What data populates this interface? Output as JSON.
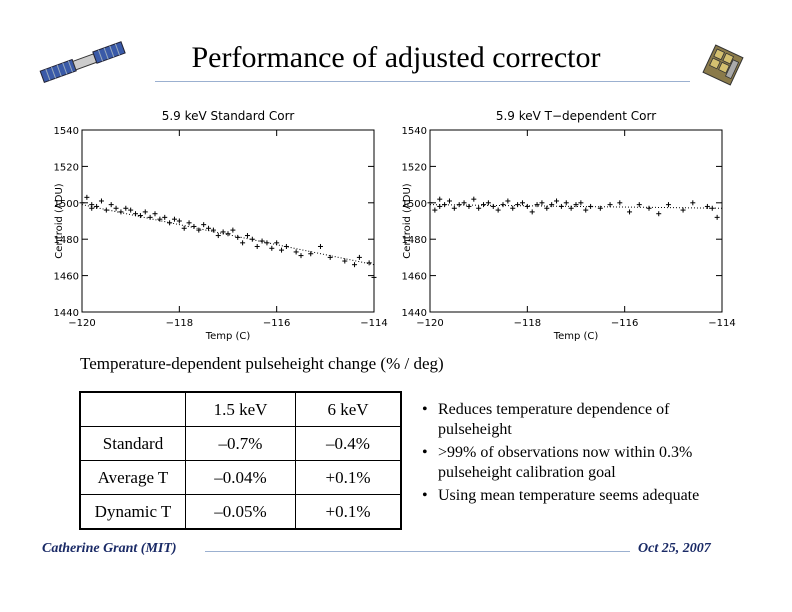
{
  "title": "Performance of adjusted corrector",
  "caption": "Temperature-dependent pulseheight change (% / deg)",
  "table": {
    "header": [
      "",
      "1.5 keV",
      "6 keV"
    ],
    "rows": [
      [
        "Standard",
        "–0.7%",
        "–0.4%"
      ],
      [
        "Average T",
        "–0.04%",
        "+0.1%"
      ],
      [
        "Dynamic T",
        "–0.05%",
        "+0.1%"
      ]
    ]
  },
  "bullets": [
    "Reduces temperature dependence of pulseheight",
    ">99% of observations now within 0.3% pulseheight calibration goal",
    "Using mean temperature seems adequate"
  ],
  "footer": {
    "author": "Catherine Grant (MIT)",
    "date": "Oct 25, 2007"
  },
  "icons": {
    "left": "satellite-icon",
    "right": "instrument-icon"
  },
  "colors": {
    "rule": "#9bb0d0",
    "footer_text": "#1a2a66"
  },
  "chart_data": [
    {
      "type": "scatter",
      "title": "5.9 keV Standard Corr",
      "xlabel": "Temp (C)",
      "ylabel": "Centroid (ADU)",
      "xlim": [
        -120,
        -114
      ],
      "ylim": [
        1440,
        1540
      ],
      "xticks": [
        "−120",
        "−118",
        "−116",
        "−114"
      ],
      "yticks": [
        "1440",
        "1460",
        "1480",
        "1500",
        "1520",
        "1540"
      ],
      "fit": {
        "x": [
          -120,
          -114
        ],
        "y": [
          1499,
          1466
        ]
      },
      "series": [
        {
          "x": [
            -120,
            -119.9,
            -119.8,
            -119.8,
            -119.7,
            -119.6,
            -119.5,
            -119.4,
            -119.3,
            -119.2,
            -119.1,
            -119.0,
            -118.9,
            -118.8,
            -118.7,
            -118.6,
            -118.5,
            -118.4,
            -118.3,
            -118.2,
            -118.1,
            -118.0,
            -117.9,
            -117.8,
            -117.7,
            -117.6,
            -117.5,
            -117.4,
            -117.3,
            -117.2,
            -117.1,
            -117.0,
            -116.9,
            -116.8,
            -116.7,
            -116.6,
            -116.5,
            -116.4,
            -116.3,
            -116.2,
            -116.1,
            -116.0,
            -115.9,
            -115.8,
            -115.6,
            -115.5,
            -115.3,
            -115.1,
            -114.9,
            -114.6,
            -114.4,
            -114.3,
            -114.1,
            -114.0
          ],
          "y": [
            1500,
            1503,
            1497,
            1499,
            1498,
            1501,
            1496,
            1499,
            1497,
            1495,
            1497,
            1496,
            1494,
            1493,
            1495,
            1492,
            1494,
            1491,
            1492,
            1489,
            1491,
            1490,
            1486,
            1489,
            1487,
            1485,
            1488,
            1486,
            1485,
            1482,
            1484,
            1483,
            1485,
            1481,
            1478,
            1482,
            1480,
            1476,
            1479,
            1478,
            1475,
            1478,
            1474,
            1476,
            1473,
            1471,
            1472,
            1476,
            1470,
            1468,
            1466,
            1470,
            1467,
            1459
          ]
        }
      ]
    },
    {
      "type": "scatter",
      "title": "5.9 keV T−dependent Corr",
      "xlabel": "Temp (C)",
      "ylabel": "Centroid (ADU)",
      "xlim": [
        -120,
        -114
      ],
      "ylim": [
        1440,
        1540
      ],
      "xticks": [
        "−120",
        "−118",
        "−116",
        "−114"
      ],
      "yticks": [
        "1440",
        "1460",
        "1480",
        "1500",
        "1520",
        "1540"
      ],
      "fit": {
        "x": [
          -120,
          -114
        ],
        "y": [
          1499,
          1497
        ]
      },
      "series": [
        {
          "x": [
            -120,
            -119.9,
            -119.8,
            -119.8,
            -119.7,
            -119.6,
            -119.5,
            -119.4,
            -119.3,
            -119.2,
            -119.1,
            -119.0,
            -118.9,
            -118.8,
            -118.7,
            -118.6,
            -118.5,
            -118.4,
            -118.3,
            -118.2,
            -118.1,
            -118.0,
            -117.9,
            -117.8,
            -117.7,
            -117.6,
            -117.5,
            -117.4,
            -117.3,
            -117.2,
            -117.1,
            -117.0,
            -116.9,
            -116.8,
            -116.7,
            -116.5,
            -116.3,
            -116.1,
            -115.9,
            -115.7,
            -115.5,
            -115.3,
            -115.1,
            -114.8,
            -114.6,
            -114.3,
            -114.2,
            -114.1
          ],
          "y": [
            1500,
            1496,
            1502,
            1498,
            1499,
            1501,
            1497,
            1499,
            1500,
            1498,
            1502,
            1497,
            1499,
            1500,
            1498,
            1496,
            1499,
            1501,
            1497,
            1499,
            1500,
            1498,
            1495,
            1499,
            1500,
            1497,
            1499,
            1501,
            1498,
            1500,
            1497,
            1499,
            1500,
            1496,
            1498,
            1497,
            1499,
            1500,
            1495,
            1499,
            1497,
            1494,
            1499,
            1496,
            1500,
            1498,
            1497,
            1492
          ]
        }
      ]
    }
  ]
}
